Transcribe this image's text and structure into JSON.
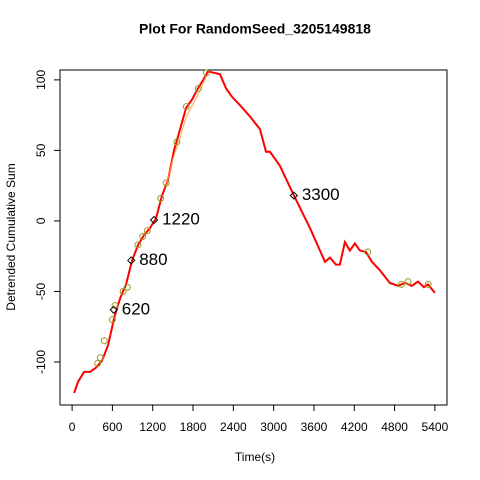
{
  "chart_data": {
    "type": "line",
    "title": "Plot For RandomSeed_3205149818",
    "x_label": "Time(s)",
    "y_label": "Detrended Cumulative Sum",
    "xlim": [
      -180,
      5580
    ],
    "ylim": [
      -130.5,
      107
    ],
    "xticks": [
      0,
      600,
      1200,
      1800,
      2400,
      3000,
      3600,
      4200,
      4800,
      5400
    ],
    "yticks": [
      -100,
      -50,
      0,
      50,
      100
    ],
    "series": [
      {
        "color": "#ff0000",
        "x": [
          30,
          89,
          179,
          268,
          357,
          446,
          536,
          625,
          714,
          803,
          893,
          982,
          1071,
          1160,
          1250,
          1339,
          1428,
          1517,
          1607,
          1696,
          1785,
          1874,
          1964,
          2023,
          2112,
          2202,
          2291,
          2380,
          2499,
          2648,
          2797,
          2886,
          2945,
          3094,
          3302,
          3540,
          3764,
          3838,
          3927,
          3986,
          4060,
          4135,
          4209,
          4284,
          4373,
          4463,
          4582,
          4730,
          4850,
          4954,
          5058,
          5147,
          5236,
          5296,
          5400
        ],
        "values": [
          -122,
          -114,
          -107,
          -107,
          -104,
          -99,
          -88,
          -69,
          -55,
          -45,
          -28,
          -17,
          -10,
          -5,
          2,
          18,
          29,
          50,
          65,
          80,
          86,
          94,
          101,
          106,
          105,
          104,
          94,
          88,
          82,
          74,
          65,
          49,
          49,
          39,
          18,
          -5,
          -29,
          -26,
          -31,
          -31,
          -15,
          -21,
          -16,
          -21,
          -22,
          -29,
          -35,
          -44,
          -46,
          -44,
          -46,
          -43,
          -47,
          -45,
          -51
        ]
      },
      {
        "color": "#ffa040",
        "x": [
          1400,
          1500,
          1600,
          1700,
          1800,
          1900,
          2000
        ],
        "values": [
          24,
          44,
          58,
          74,
          83,
          92,
          103
        ]
      }
    ],
    "markers": {
      "color": "#9a9a20",
      "x": [
        380,
        420,
        480,
        600,
        640,
        760,
        820,
        980,
        1050,
        1120,
        1320,
        1400,
        1560,
        1700,
        1880,
        2000,
        4400,
        4900,
        5000,
        5300
      ],
      "values": [
        -101,
        -97,
        -85,
        -70,
        -60,
        -50,
        -47,
        -17,
        -11,
        -7,
        16,
        27,
        56,
        81,
        94,
        105,
        -22,
        -45,
        -43,
        -45
      ]
    },
    "annotations": [
      {
        "x": 620,
        "y": -63,
        "color": "#0000ff"
      },
      {
        "x": 880,
        "y": -28,
        "color": "#0000ff"
      },
      {
        "x": 1220,
        "y": 0.7,
        "color": "#0000ff"
      },
      {
        "x": 3300,
        "y": 18,
        "color": "#0000ff"
      }
    ]
  }
}
